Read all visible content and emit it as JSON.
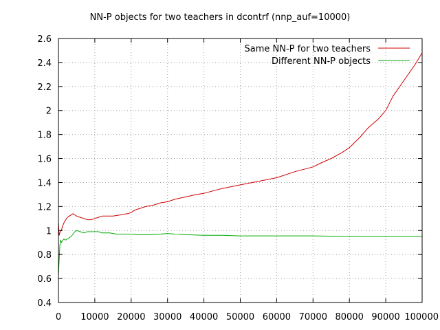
{
  "chart_data": {
    "type": "line",
    "title": "NN-P objects for two teachers in dcontrf (nnp_auf=10000)",
    "xlabel": "",
    "ylabel": "",
    "xlim": [
      0,
      100000
    ],
    "ylim": [
      0.4,
      2.6
    ],
    "x_ticks": [
      0,
      10000,
      20000,
      30000,
      40000,
      50000,
      60000,
      70000,
      80000,
      90000,
      100000
    ],
    "x_tick_labels": [
      "0",
      "10000",
      "20000",
      "30000",
      "40000",
      "50000",
      "60000",
      "70000",
      "80000",
      "90000",
      "100000"
    ],
    "y_ticks": [
      0.4,
      0.6,
      0.8,
      1.0,
      1.2,
      1.4,
      1.6,
      1.8,
      2.0,
      2.2,
      2.4,
      2.6
    ],
    "y_tick_labels": [
      "0.4",
      "0.6",
      "0.8",
      "1",
      "1.2",
      "1.4",
      "1.6",
      "1.8",
      "2",
      "2.2",
      "2.4",
      "2.6"
    ],
    "grid": true,
    "legend_position": "top-right",
    "series": [
      {
        "name": "Same NN-P for two teachers",
        "color": "#cc0000",
        "x": [
          0,
          200,
          500,
          800,
          1200,
          1600,
          2000,
          2500,
          3000,
          3500,
          4000,
          4500,
          5000,
          6000,
          7000,
          8000,
          9000,
          10000,
          11000,
          12000,
          13000,
          15000,
          17000,
          19000,
          20000,
          21000,
          22000,
          24000,
          26000,
          28000,
          30000,
          32000,
          35000,
          38000,
          40000,
          45000,
          50000,
          55000,
          60000,
          65000,
          70000,
          72000,
          75000,
          78000,
          80000,
          83000,
          85000,
          88000,
          90000,
          92000,
          95000,
          98000,
          100000
        ],
        "y": [
          1.07,
          0.96,
          0.99,
          1.0,
          1.04,
          1.07,
          1.09,
          1.11,
          1.12,
          1.13,
          1.14,
          1.13,
          1.12,
          1.11,
          1.1,
          1.09,
          1.09,
          1.1,
          1.11,
          1.12,
          1.12,
          1.12,
          1.13,
          1.14,
          1.15,
          1.17,
          1.18,
          1.2,
          1.21,
          1.23,
          1.24,
          1.26,
          1.28,
          1.3,
          1.31,
          1.35,
          1.38,
          1.41,
          1.44,
          1.49,
          1.53,
          1.56,
          1.6,
          1.65,
          1.69,
          1.78,
          1.85,
          1.93,
          2.0,
          2.12,
          2.25,
          2.38,
          2.48
        ]
      },
      {
        "name": "Different NN-P objects",
        "color": "#00aa00",
        "x": [
          0,
          200,
          400,
          600,
          800,
          1000,
          1500,
          2000,
          2500,
          3000,
          3500,
          4000,
          4500,
          5000,
          6000,
          7000,
          8000,
          9000,
          10000,
          11000,
          12000,
          14000,
          16000,
          18000,
          20000,
          22000,
          25000,
          28000,
          30000,
          32000,
          35000,
          40000,
          45000,
          50000,
          55000,
          60000,
          65000,
          70000,
          75000,
          80000,
          85000,
          90000,
          95000,
          100000
        ],
        "y": [
          0.62,
          0.76,
          0.88,
          0.92,
          0.9,
          0.91,
          0.93,
          0.92,
          0.93,
          0.94,
          0.95,
          0.97,
          0.99,
          1.0,
          0.99,
          0.98,
          0.99,
          0.99,
          0.99,
          0.99,
          0.98,
          0.98,
          0.97,
          0.97,
          0.97,
          0.965,
          0.965,
          0.97,
          0.975,
          0.97,
          0.965,
          0.96,
          0.96,
          0.955,
          0.955,
          0.955,
          0.955,
          0.955,
          0.953,
          0.953,
          0.952,
          0.952,
          0.952,
          0.952
        ]
      }
    ]
  }
}
